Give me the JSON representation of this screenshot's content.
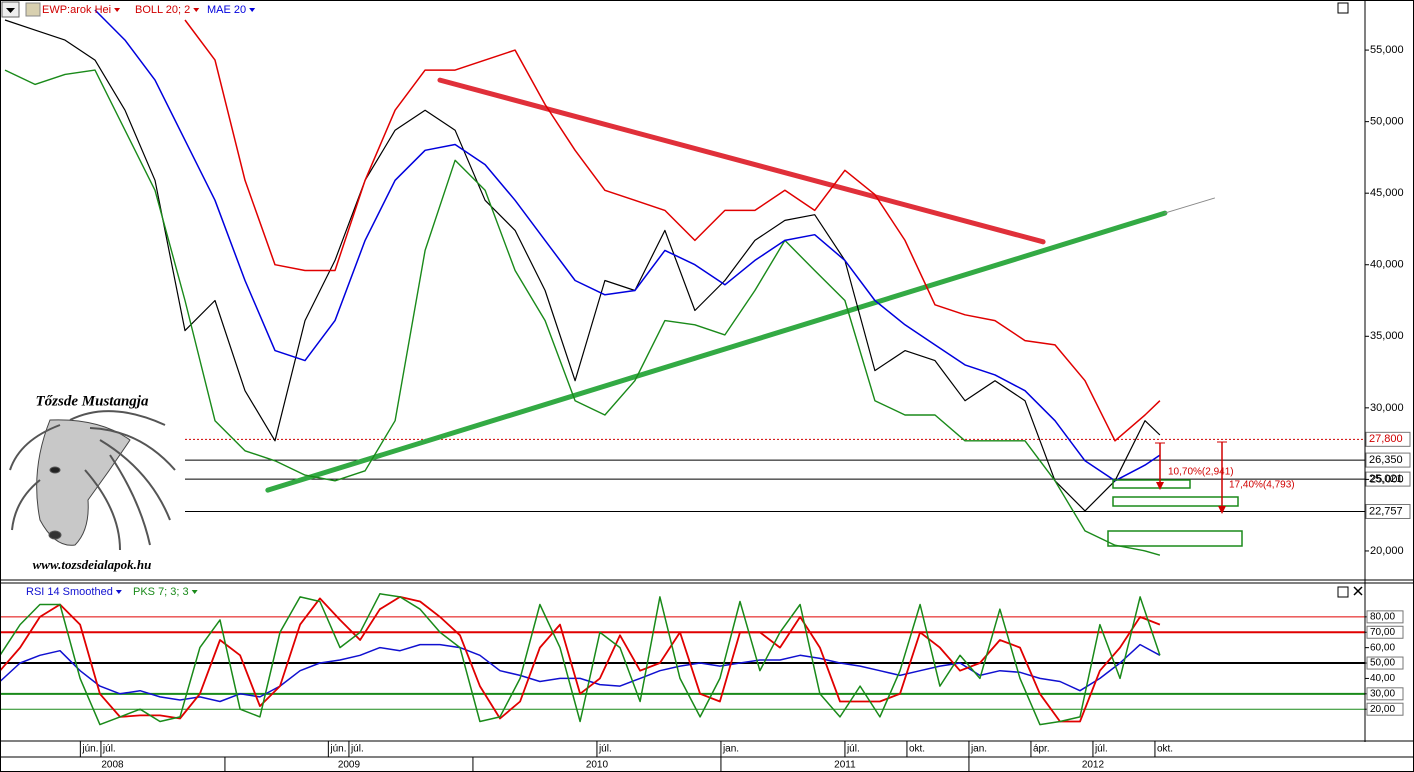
{
  "chart_data": [
    {
      "type": "line",
      "x": [
        2008.113,
        2008.234,
        2008.355,
        2008.476,
        2008.597,
        2008.718,
        2008.839,
        2008.96,
        2009.081,
        2009.202,
        2009.323,
        2009.444,
        2009.565,
        2009.686,
        2009.807,
        2009.928,
        2010.049,
        2010.17,
        2010.291,
        2010.412,
        2010.532,
        2010.653,
        2010.774,
        2010.895,
        2011.016,
        2011.137,
        2011.258,
        2011.378,
        2011.5,
        2011.621,
        2011.742,
        2011.863,
        2011.984,
        2012.105,
        2012.226,
        2012.347,
        2012.468,
        2012.589,
        2012.71,
        2012.77
      ],
      "xlim": [
        2008.093,
        2013.597
      ],
      "ylim": [
        17970,
        58500
      ],
      "yticks": [
        {
          "value": 20000,
          "label": "20,000"
        },
        {
          "value": 25000,
          "label": "25,000"
        },
        {
          "value": 30000,
          "label": "30,000"
        },
        {
          "value": 35000,
          "label": "35,000"
        },
        {
          "value": 40000,
          "label": "40,000"
        },
        {
          "value": 45000,
          "label": "45,000"
        },
        {
          "value": 50000,
          "label": "50,000"
        },
        {
          "value": 55000,
          "label": "55,000"
        }
      ],
      "series": [
        {
          "name": "EWP:arok Hei",
          "color": "#000000",
          "values": [
            57100,
            56400,
            55700,
            54300,
            50800,
            45900,
            35400,
            37500,
            31200,
            27700,
            36100,
            40300,
            45900,
            49400,
            50800,
            49400,
            44500,
            42400,
            38200,
            31900,
            38900,
            38200,
            42400,
            36800,
            38900,
            41700,
            43100,
            43500,
            40300,
            32600,
            34000,
            33300,
            30500,
            31900,
            30500,
            24900,
            22800,
            24900,
            29100,
            28100
          ]
        },
        {
          "name": "BOLL 20; 2",
          "color": "#e00000",
          "lower_color": "#1a8a1a",
          "values": [
            null,
            null,
            null,
            null,
            null,
            null,
            57100,
            54300,
            45900,
            40000,
            39600,
            39600,
            45900,
            50800,
            53600,
            53600,
            54300,
            55000,
            51200,
            48000,
            45200,
            44500,
            43800,
            41700,
            43800,
            43800,
            45200,
            43800,
            46600,
            44900,
            41700,
            37200,
            36500,
            36100,
            34700,
            34400,
            31900,
            27700,
            29500,
            30500
          ],
          "lower": [
            53600,
            52600,
            53300,
            53600,
            49400,
            45200,
            37500,
            29100,
            27000,
            26300,
            25300,
            24900,
            25600,
            29100,
            41000,
            47300,
            45200,
            39600,
            36100,
            30500,
            29500,
            31900,
            36100,
            35800,
            35100,
            38200,
            41700,
            39600,
            37500,
            30500,
            29500,
            29500,
            27700,
            27700,
            27700,
            24900,
            21400,
            20400,
            20000,
            19700
          ]
        },
        {
          "name": "MAE 20",
          "color": "#0000dd",
          "values": [
            null,
            null,
            null,
            57800,
            55700,
            52900,
            48700,
            44500,
            38900,
            34000,
            33300,
            36100,
            41700,
            45900,
            48000,
            48400,
            47000,
            44500,
            41700,
            38900,
            37900,
            38200,
            41000,
            40000,
            38600,
            40300,
            41700,
            42100,
            40300,
            37500,
            35800,
            34400,
            33000,
            32300,
            31200,
            29100,
            26300,
            24900,
            26000,
            26700
          ]
        }
      ],
      "levels": [
        {
          "value": 27800,
          "label": "27,800",
          "color": "#d00000",
          "style": "dotted"
        },
        {
          "value": 26350,
          "label": "26,350",
          "color": "#000000",
          "style": "solid"
        },
        {
          "value": 25021,
          "label": "25,021",
          "color": "#000000",
          "style": "solid"
        },
        {
          "value": 22757,
          "label": "22,757",
          "color": "#000000",
          "style": "solid"
        }
      ],
      "trendlines": [
        {
          "color": "#e0303a",
          "style": "thick",
          "x": [
            2009.867,
            2012.299
          ],
          "y": [
            52900,
            41600
          ]
        },
        {
          "color": "#33aa44",
          "style": "thick",
          "x": [
            2009.173,
            2012.79
          ],
          "y": [
            24250,
            43610
          ]
        },
        {
          "color": "#888888",
          "style": "thin",
          "x": [
            2012.79,
            2012.99
          ],
          "y": [
            43610,
            44660
          ]
        }
      ],
      "annotations": [
        "10,70%(2,941)",
        "17,40%(4,793)"
      ]
    },
    {
      "type": "line",
      "x": [
        2008.093,
        2008.174,
        2008.254,
        2008.335,
        2008.416,
        2008.496,
        2008.577,
        2008.658,
        2008.738,
        2008.819,
        2008.899,
        2008.98,
        2009.061,
        2009.141,
        2009.222,
        2009.303,
        2009.383,
        2009.464,
        2009.545,
        2009.625,
        2009.706,
        2009.787,
        2009.867,
        2009.948,
        2010.028,
        2010.109,
        2010.19,
        2010.27,
        2010.351,
        2010.432,
        2010.512,
        2010.593,
        2010.674,
        2010.754,
        2010.835,
        2010.916,
        2010.996,
        2011.077,
        2011.157,
        2011.238,
        2011.319,
        2011.399,
        2011.48,
        2011.561,
        2011.641,
        2011.722,
        2011.803,
        2011.883,
        2011.964,
        2012.044,
        2012.125,
        2012.206,
        2012.286,
        2012.367,
        2012.448,
        2012.528,
        2012.609,
        2012.69,
        2012.77
      ],
      "xlim": [
        2008.093,
        2013.597
      ],
      "ylim": [
        0,
        102
      ],
      "yticks": [
        {
          "value": 20,
          "label": "20,00"
        },
        {
          "value": 30,
          "label": "30,00"
        },
        {
          "value": 40,
          "label": "40,00"
        },
        {
          "value": 50,
          "label": "50,00"
        },
        {
          "value": 60,
          "label": "60,00"
        },
        {
          "value": 70,
          "label": "70,00"
        },
        {
          "value": 80,
          "label": "80,00"
        }
      ],
      "series": [
        {
          "name": "RSI 14 Smoothed",
          "color": "#1010d0",
          "values": [
            38,
            50,
            55,
            58,
            45,
            35,
            30,
            32,
            28,
            26,
            28,
            25,
            30,
            28,
            35,
            45,
            50,
            52,
            55,
            60,
            58,
            62,
            62,
            60,
            55,
            45,
            42,
            38,
            40,
            40,
            36,
            35,
            40,
            45,
            48,
            50,
            48,
            50,
            52,
            52,
            55,
            53,
            50,
            48,
            45,
            42,
            45,
            48,
            50,
            42,
            45,
            44,
            40,
            38,
            32,
            40,
            50,
            62,
            55
          ]
        },
        {
          "name": "PKS 7; 3; 3",
          "color": "#1a8a1a",
          "signal_color": "#e00000",
          "values": [
            55,
            75,
            88,
            88,
            40,
            10,
            15,
            20,
            12,
            15,
            60,
            78,
            20,
            15,
            70,
            93,
            90,
            60,
            70,
            95,
            93,
            85,
            70,
            60,
            12,
            15,
            40,
            88,
            60,
            12,
            70,
            60,
            25,
            93,
            40,
            15,
            40,
            90,
            45,
            70,
            88,
            30,
            15,
            35,
            15,
            45,
            88,
            35,
            55,
            40,
            85,
            40,
            10,
            12,
            15,
            75,
            40,
            93,
            55
          ],
          "signal": [
            45,
            60,
            80,
            88,
            75,
            30,
            15,
            16,
            16,
            14,
            30,
            65,
            55,
            22,
            35,
            75,
            92,
            78,
            65,
            85,
            93,
            90,
            80,
            68,
            35,
            14,
            25,
            60,
            75,
            30,
            40,
            68,
            45,
            50,
            70,
            30,
            25,
            70,
            70,
            60,
            80,
            60,
            25,
            25,
            25,
            30,
            70,
            60,
            45,
            50,
            65,
            60,
            30,
            12,
            12,
            45,
            60,
            80,
            75
          ]
        }
      ],
      "levels": [
        {
          "value": 80,
          "color": "#e00000",
          "style": "thin"
        },
        {
          "value": 70,
          "color": "#e00000",
          "style": "thick"
        },
        {
          "value": 50,
          "color": "#000000",
          "style": "thick"
        },
        {
          "value": 30,
          "color": "#1a8a1a",
          "style": "thick"
        },
        {
          "value": 20,
          "color": "#1a8a1a",
          "style": "thin"
        }
      ],
      "xticks": [
        {
          "value": 2008.417,
          "label": "jún."
        },
        {
          "value": 2008.5,
          "label": "júl."
        },
        {
          "value": 2009.417,
          "label": "jún."
        },
        {
          "value": 2009.5,
          "label": "júl."
        },
        {
          "value": 2010.5,
          "label": "júl."
        },
        {
          "value": 2011.0,
          "label": "jan."
        },
        {
          "value": 2011.5,
          "label": "júl."
        },
        {
          "value": 2011.75,
          "label": "okt."
        },
        {
          "value": 2012.0,
          "label": "jan."
        },
        {
          "value": 2012.25,
          "label": "ápr."
        },
        {
          "value": 2012.5,
          "label": "júl."
        },
        {
          "value": 2012.75,
          "label": "okt."
        }
      ],
      "years": [
        "2008",
        "2009",
        "2010",
        "2011",
        "2012"
      ]
    }
  ],
  "watermark": {
    "title": "Tőzsde Mustangja",
    "url": "www.tozsdeialapok.hu"
  }
}
